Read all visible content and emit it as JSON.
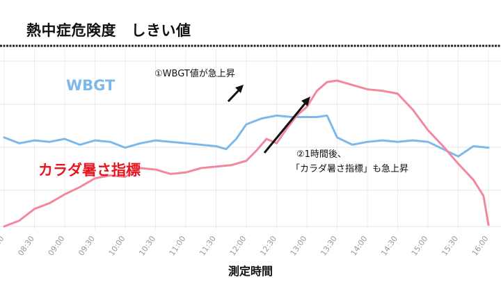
{
  "title": "熱中症危険度　しきい値",
  "chart_data": {
    "type": "line",
    "title": "熱中症危険度　しきい値",
    "xlabel": "測定時間",
    "ylabel": "",
    "x_ticks": [
      "08:00",
      "08:30",
      "09:00",
      "09:30",
      "10:00",
      "10:30",
      "11:00",
      "11:30",
      "12:00",
      "12:30",
      "13:00",
      "13:30",
      "14:00",
      "14:30",
      "15:00",
      "15:30",
      "16:00"
    ],
    "x_tick_labels": [
      "8:00",
      "08:30",
      "09:00",
      "09:30",
      "10:00",
      "10:30",
      "11:00",
      "11:30",
      "12:00",
      "12:30",
      "13:00",
      "13:30",
      "14:00",
      "14:30",
      "15:00",
      "15:30",
      "16:00"
    ],
    "grid": true,
    "threshold_line": true,
    "series": [
      {
        "name": "WBGT",
        "color": "#7cb9ea",
        "x": [
          "08:00",
          "08:15",
          "08:30",
          "08:45",
          "09:00",
          "09:15",
          "09:30",
          "09:45",
          "10:00",
          "10:15",
          "10:30",
          "10:45",
          "11:00",
          "11:15",
          "11:30",
          "11:40",
          "11:50",
          "12:00",
          "12:15",
          "12:30",
          "12:45",
          "13:00",
          "13:10",
          "13:20",
          "13:30",
          "13:45",
          "14:00",
          "14:15",
          "14:30",
          "14:45",
          "15:00",
          "15:15",
          "15:30",
          "15:45",
          "16:00"
        ],
        "values": [
          0.61,
          0.57,
          0.59,
          0.58,
          0.6,
          0.56,
          0.59,
          0.58,
          0.54,
          0.57,
          0.59,
          0.58,
          0.57,
          0.56,
          0.55,
          0.53,
          0.6,
          0.7,
          0.74,
          0.76,
          0.75,
          0.75,
          0.75,
          0.76,
          0.61,
          0.56,
          0.58,
          0.59,
          0.58,
          0.59,
          0.58,
          0.53,
          0.48,
          0.55,
          0.54
        ]
      },
      {
        "name": "カラダ暑さ指標",
        "color": "#f2879e",
        "x": [
          "08:00",
          "08:15",
          "08:30",
          "08:45",
          "09:00",
          "09:15",
          "09:30",
          "09:45",
          "10:00",
          "10:15",
          "10:30",
          "10:45",
          "11:00",
          "11:15",
          "11:30",
          "11:45",
          "12:00",
          "12:10",
          "12:20",
          "12:30",
          "12:40",
          "12:50",
          "13:00",
          "13:10",
          "13:20",
          "13:30",
          "13:45",
          "14:00",
          "14:15",
          "14:30",
          "14:45",
          "15:00",
          "15:15",
          "15:30",
          "15:45",
          "15:55",
          "16:00"
        ],
        "values": [
          0.0,
          0.04,
          0.12,
          0.16,
          0.22,
          0.27,
          0.33,
          0.35,
          0.34,
          0.4,
          0.39,
          0.36,
          0.37,
          0.4,
          0.41,
          0.42,
          0.45,
          0.52,
          0.6,
          0.57,
          0.67,
          0.76,
          0.82,
          0.93,
          0.99,
          1.0,
          0.97,
          0.94,
          0.93,
          0.91,
          0.8,
          0.66,
          0.55,
          0.43,
          0.32,
          0.21,
          0.01
        ]
      }
    ],
    "annotations": [
      {
        "text": "①WBGT値が急上昇"
      },
      {
        "text_line1": "②1時間後、",
        "text_line2": "「カラダ暑さ指標」も急上昇"
      }
    ],
    "series_labels": {
      "wbgt": "WBGT",
      "body": "カラダ暑さ指標"
    }
  }
}
